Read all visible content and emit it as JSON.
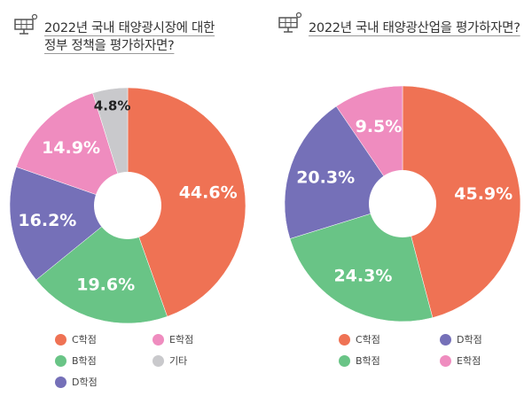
{
  "colors": {
    "C": "#ef7254",
    "B": "#69c486",
    "D": "#7570b8",
    "E": "#ef8cbf",
    "etc": "#c9c9cc"
  },
  "chart_data": [
    {
      "type": "pie",
      "title_lines": [
        "2022년 국내 태양광시장에 대한",
        "정부 정책을 평가하자면?"
      ],
      "slices": [
        {
          "key": "C",
          "label": "C학점",
          "value": 44.6,
          "text": "44.6%"
        },
        {
          "key": "B",
          "label": "B학점",
          "value": 19.6,
          "text": "19.6%"
        },
        {
          "key": "D",
          "label": "D학점",
          "value": 16.2,
          "text": "16.2%"
        },
        {
          "key": "E",
          "label": "E학점",
          "value": 14.9,
          "text": "14.9%"
        },
        {
          "key": "etc",
          "label": "기타",
          "value": 4.8,
          "text": "4.8%"
        }
      ],
      "legend": [
        {
          "key": "C",
          "label": "C학점"
        },
        {
          "key": "E",
          "label": "E학점"
        },
        {
          "key": "B",
          "label": "B학점"
        },
        {
          "key": "etc",
          "label": "기타"
        },
        {
          "key": "D",
          "label": "D학점"
        }
      ]
    },
    {
      "type": "pie",
      "title_lines": [
        "2022년 국내 태양광산업을 평가하자면?"
      ],
      "slices": [
        {
          "key": "C",
          "label": "C학점",
          "value": 45.9,
          "text": "45.9%"
        },
        {
          "key": "B",
          "label": "B학점",
          "value": 24.3,
          "text": "24.3%"
        },
        {
          "key": "D",
          "label": "D학점",
          "value": 20.3,
          "text": "20.3%"
        },
        {
          "key": "E",
          "label": "E학점",
          "value": 9.5,
          "text": "9.5%"
        }
      ],
      "legend": [
        {
          "key": "C",
          "label": "C학점"
        },
        {
          "key": "D",
          "label": "D학점"
        },
        {
          "key": "B",
          "label": "B학점"
        },
        {
          "key": "E",
          "label": "E학점"
        }
      ]
    }
  ],
  "icons": [
    "solar-panel-icon"
  ]
}
